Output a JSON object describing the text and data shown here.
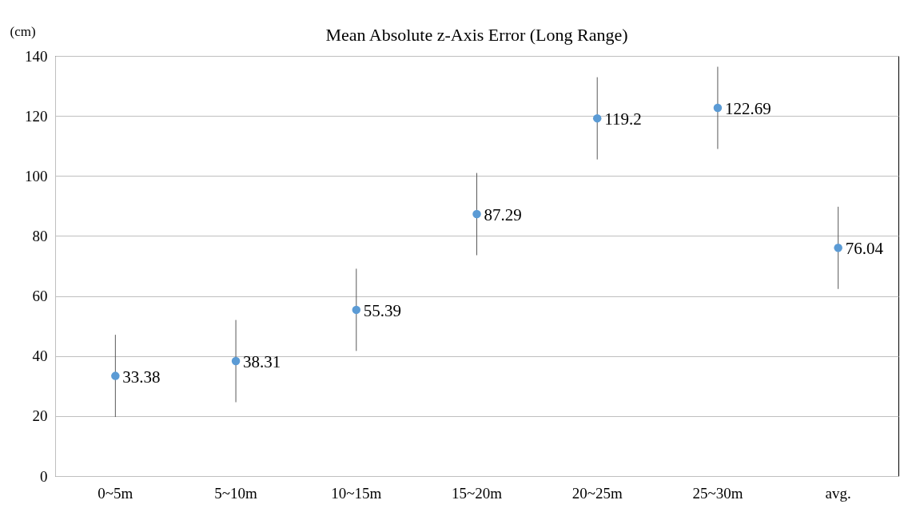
{
  "chart_data": {
    "type": "scatter",
    "title": "Mean Absolute z-Axis Error (Long Range)",
    "ylabel": "(cm)",
    "categories": [
      "0~5m",
      "5~10m",
      "10~15m",
      "15~20m",
      "20~25m",
      "25~30m",
      "avg."
    ],
    "series": [
      {
        "color": "#5b9bd5",
        "values": [
          33.38,
          38.31,
          55.39,
          87.29,
          119.2,
          122.69,
          76.04
        ],
        "errors": [
          13.7,
          13.7,
          13.7,
          13.7,
          13.7,
          13.7,
          13.7
        ]
      }
    ],
    "ylim": [
      0,
      140
    ],
    "yticks": [
      0,
      20,
      40,
      60,
      80,
      100,
      120,
      140
    ],
    "grid": "y",
    "marker": "circle",
    "data_labels": true
  }
}
